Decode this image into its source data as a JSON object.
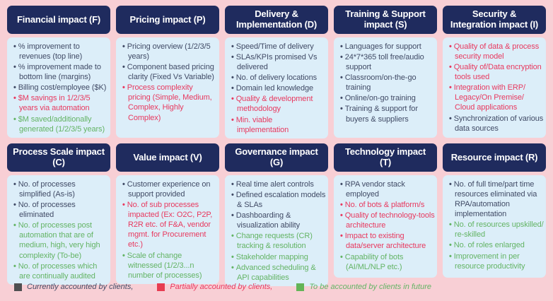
{
  "colors": {
    "background": "#f8cfd5",
    "header_bg": "#1f2b5e",
    "header_text": "#ffffff",
    "body_bg": "#dceef9",
    "current": "#414b66",
    "partial": "#e8395f",
    "future": "#64b465",
    "swatch_current": "#4f4f51",
    "swatch_partial": "#e73d51",
    "swatch_future": "#63b457"
  },
  "cards": [
    {
      "title": "Financial impact (F)",
      "items": [
        {
          "text": "% improvement to revenues (top line)",
          "status": "current"
        },
        {
          "text": "% improvement made to bottom line (margins)",
          "status": "current"
        },
        {
          "text": "Billing cost/employee ($K)",
          "status": "current"
        },
        {
          "text": "$M savings in 1/2/3/5 years via automation",
          "status": "partial"
        },
        {
          "text": "$M saved/additionally generated (1/2/3/5 years)",
          "status": "future"
        }
      ]
    },
    {
      "title": "Pricing impact (P)",
      "items": [
        {
          "text": "Pricing overview (1/2/3/5 years)",
          "status": "current"
        },
        {
          "text": "Component based pricing clarity (Fixed Vs Variable)",
          "status": "current"
        },
        {
          "text": "Process complexity pricing (Simple, Medium, Complex, Highly Complex)",
          "status": "partial"
        }
      ]
    },
    {
      "title": "Delivery & Implementation (D)",
      "items": [
        {
          "text": "Speed/Time of delivery",
          "status": "current"
        },
        {
          "text": "SLAs/KPIs promised Vs delivered",
          "status": "current"
        },
        {
          "text": "No. of delivery locations",
          "status": "current"
        },
        {
          "text": "Domain led knowledge",
          "status": "current"
        },
        {
          "text": "Quality & development methodology",
          "status": "partial"
        },
        {
          "text": "Min. viable implementation",
          "status": "partial"
        }
      ]
    },
    {
      "title": "Training & Support impact (S)",
      "items": [
        {
          "text": "Languages for support",
          "status": "current"
        },
        {
          "text": "24*7*365 toll free/audio support",
          "status": "current"
        },
        {
          "text": "Classroom/on-the-go training",
          "status": "current"
        },
        {
          "text": "Online/on-go training",
          "status": "current"
        },
        {
          "text": "Training & support for buyers & suppliers",
          "status": "current"
        }
      ]
    },
    {
      "title": "Security & Integration impact (I)",
      "items": [
        {
          "text": "Quality of data & process security model",
          "status": "partial"
        },
        {
          "text": "Quality of/Data encryption tools used",
          "status": "partial"
        },
        {
          "text": "Integration with ERP/ Legacy/On Premise/ Cloud applications",
          "status": "partial"
        },
        {
          "text": "Synchronization of various data sources",
          "status": "current"
        }
      ]
    },
    {
      "title": "Process Scale impact (C)",
      "items": [
        {
          "text": "No. of processes simplified (As-is)",
          "status": "current"
        },
        {
          "text": "No. of processes eliminated",
          "status": "current"
        },
        {
          "text": "No. of processes post automation that are of medium, high, very high complexity (To-be)",
          "status": "future"
        },
        {
          "text": "No. of processes which are continually audited",
          "status": "future"
        }
      ]
    },
    {
      "title": "Value impact (V)",
      "items": [
        {
          "text": "Customer experience on support provided",
          "status": "current"
        },
        {
          "text": "No. of sub processes impacted (Ex: O2C, P2P, R2R etc. of F&A, vendor mgmt. for Procurement etc.)",
          "status": "partial"
        },
        {
          "text": "Scale of change witnessed (1/2/3...n number of processes)",
          "status": "future"
        }
      ]
    },
    {
      "title": "Governance impact (G)",
      "items": [
        {
          "text": "Real time alert controls",
          "status": "current"
        },
        {
          "text": "Defined escalation models & SLAs",
          "status": "current"
        },
        {
          "text": "Dashboarding & visualization ability",
          "status": "current"
        },
        {
          "text": "Change requests (CR) tracking & resolution",
          "status": "future"
        },
        {
          "text": "Stakeholder mapping",
          "status": "future"
        },
        {
          "text": "Advanced scheduling & API capabilities",
          "status": "future"
        }
      ]
    },
    {
      "title": "Technology impact (T)",
      "items": [
        {
          "text": "RPA vendor stack employed",
          "status": "current"
        },
        {
          "text": "No. of bots & platform/s",
          "status": "partial"
        },
        {
          "text": "Quality of technology-tools architecture",
          "status": "partial"
        },
        {
          "text": "Impact to existing data/server architecture",
          "status": "partial"
        },
        {
          "text": "Capability of bots (AI/ML/NLP etc.)",
          "status": "future"
        }
      ]
    },
    {
      "title": "Resource impact (R)",
      "items": [
        {
          "text": "No. of full time/part time resources eliminated via RPA/automation implementation",
          "status": "current"
        },
        {
          "text": "No. of resources upskilled/ re-skilled",
          "status": "future"
        },
        {
          "text": "No. of roles enlarged",
          "status": "future"
        },
        {
          "text": "Improvement in per resource productivity",
          "status": "future"
        }
      ]
    }
  ],
  "legend": [
    {
      "label": "Currently accounted by clients,",
      "status": "current"
    },
    {
      "label": "Partially accounted by clients,",
      "status": "partial"
    },
    {
      "label": "To be accounted by clients in future",
      "status": "future"
    }
  ]
}
